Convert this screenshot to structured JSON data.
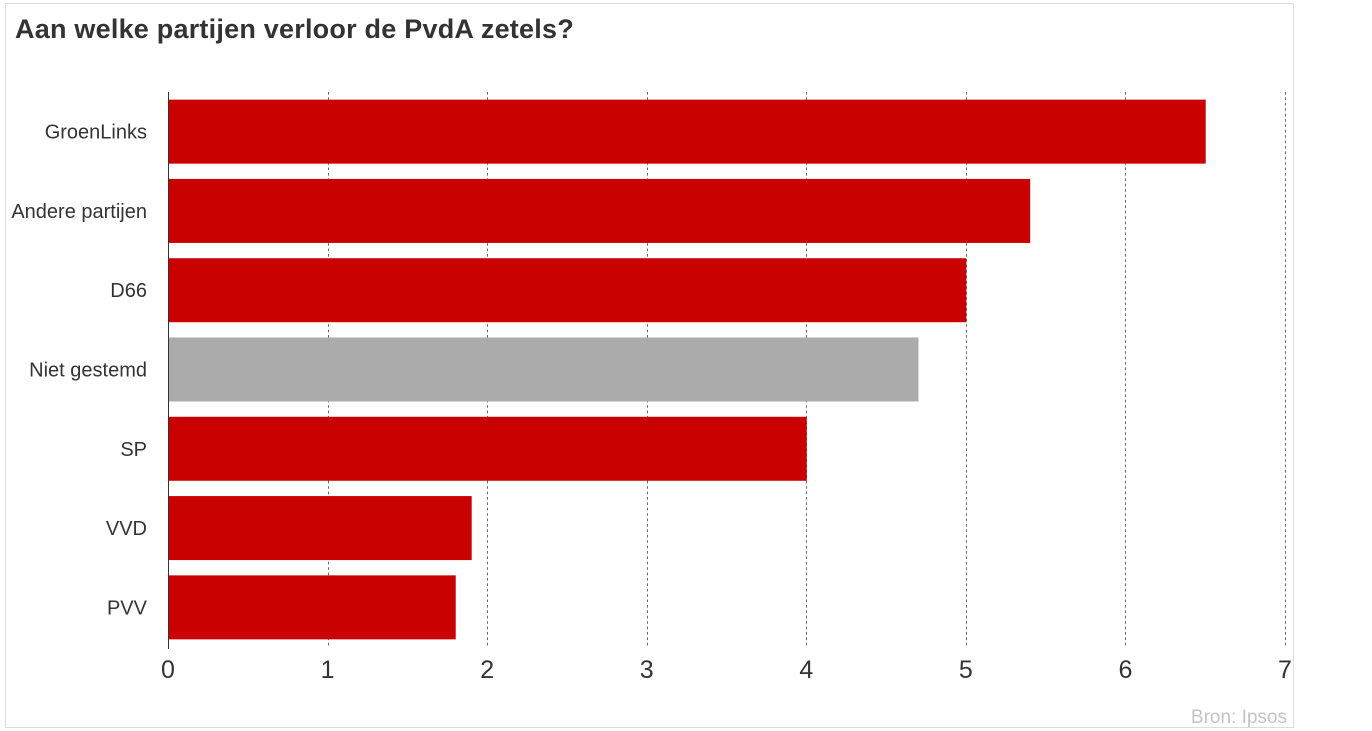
{
  "title": "Aan welke partijen verloor de PvdA zetels?",
  "source": "Bron: Ipsos",
  "colors": {
    "bar": "#c90101",
    "bar_muted": "#ababab",
    "title_text": "#333333",
    "category_label": "#333333",
    "tick_label": "#333333",
    "gridline": "#666666",
    "axis_line": "#333333",
    "credits_text": "#c4c4c4",
    "card_border": "#dddddd",
    "background": "#ffffff"
  },
  "chart_data": {
    "type": "bar",
    "orientation": "horizontal",
    "title": "Aan welke partijen verloor de PvdA zetels?",
    "categories": [
      "GroenLinks",
      "Andere partijen",
      "D66",
      "Niet gestemd",
      "SP",
      "VVD",
      "PVV"
    ],
    "values": [
      6.5,
      5.4,
      5.0,
      4.7,
      4.0,
      1.9,
      1.8
    ],
    "bar_colors": [
      "#c90101",
      "#c90101",
      "#c90101",
      "#ababab",
      "#c90101",
      "#c90101",
      "#c90101"
    ],
    "xlabel": "",
    "ylabel": "",
    "xlim": [
      0,
      7
    ],
    "xticks": [
      0,
      1,
      2,
      3,
      4,
      5,
      6,
      7
    ],
    "grid": "vertical-dashed",
    "legend": "none",
    "source": "Bron: Ipsos"
  }
}
